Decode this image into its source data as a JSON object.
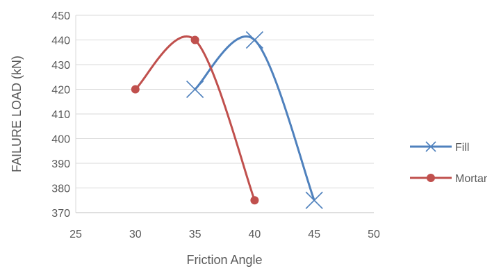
{
  "chart_data": {
    "type": "scatter",
    "title": "",
    "xlabel": "Friction Angle",
    "ylabel": "FAILURE LOAD (kN)",
    "xlim": [
      25,
      50
    ],
    "ylim": [
      370,
      450
    ],
    "xticks": [
      25,
      30,
      35,
      40,
      45,
      50
    ],
    "yticks": [
      370,
      380,
      390,
      400,
      410,
      420,
      430,
      440,
      450
    ],
    "grid": "horizontal",
    "legend_position": "right",
    "series": [
      {
        "name": "Fill",
        "marker": "x",
        "color": "#4F81BD",
        "points": [
          {
            "x": 35,
            "y": 420
          },
          {
            "x": 40,
            "y": 440
          },
          {
            "x": 45,
            "y": 375
          }
        ]
      },
      {
        "name": "Mortar",
        "marker": "circle",
        "color": "#C0504D",
        "points": [
          {
            "x": 30,
            "y": 420
          },
          {
            "x": 35,
            "y": 440
          },
          {
            "x": 40,
            "y": 375
          }
        ]
      }
    ]
  }
}
